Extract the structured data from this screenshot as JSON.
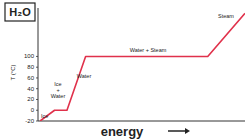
{
  "chart_data": {
    "type": "line",
    "title": "H₂O",
    "x_label": "energy",
    "y_label": "T (°C)",
    "series": [
      {
        "name": "H₂O",
        "color": "#e0314b",
        "x": [
          1,
          8,
          14,
          23,
          82,
          100
        ],
        "values": [
          -20,
          0,
          0,
          100,
          100,
          180
        ]
      }
    ],
    "xlim": [
      0,
      100
    ],
    "ylim": [
      -20,
      190
    ],
    "yticks": [
      -20,
      0,
      20,
      40,
      60,
      80,
      100
    ],
    "tick_labels": "y",
    "annotations": [
      "Ice",
      "Ice + Water",
      "Water",
      "Water + Steam",
      "Steam"
    ]
  }
}
